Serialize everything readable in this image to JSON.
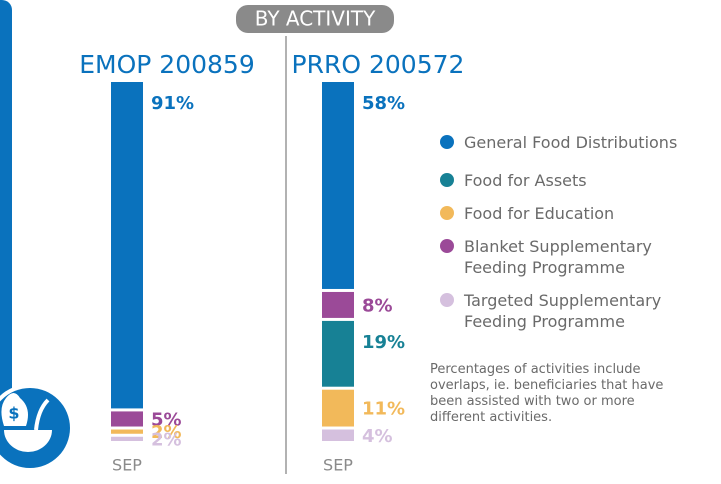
{
  "chart_data": {
    "type": "bar",
    "stacked": true,
    "title": "BY ACTIVITY",
    "subtitles": [
      "EMOP 200859",
      "PRRO 200572"
    ],
    "categories": [
      "SEP",
      "SEP"
    ],
    "ylim": [
      0,
      100
    ],
    "series": [
      {
        "name": "General Food Distributions",
        "color": "#0a72bd",
        "values": [
          91,
          58
        ],
        "value_labels": [
          "91%",
          "58%"
        ]
      },
      {
        "name": "Food for Assets",
        "color": "#178195",
        "values": [
          null,
          19
        ],
        "value_labels": [
          null,
          "19%"
        ]
      },
      {
        "name": "Food for Education",
        "color": "#f2b95a",
        "values": [
          2,
          11
        ],
        "value_labels": [
          "2%",
          "11%"
        ]
      },
      {
        "name": "Blanket Supplementary Feeding Programme",
        "color": "#9b4a98",
        "values": [
          5,
          8
        ],
        "value_labels": [
          "5%",
          "8%"
        ]
      },
      {
        "name": "Targeted Supplementary Feeding Programme",
        "color": "#d5c0de",
        "values": [
          2,
          4
        ],
        "value_labels": [
          "2%",
          "4%"
        ]
      }
    ],
    "note": "Percentages of activities include overlaps, ie. beneficiaries that have been assisted with two or more different activities."
  }
}
